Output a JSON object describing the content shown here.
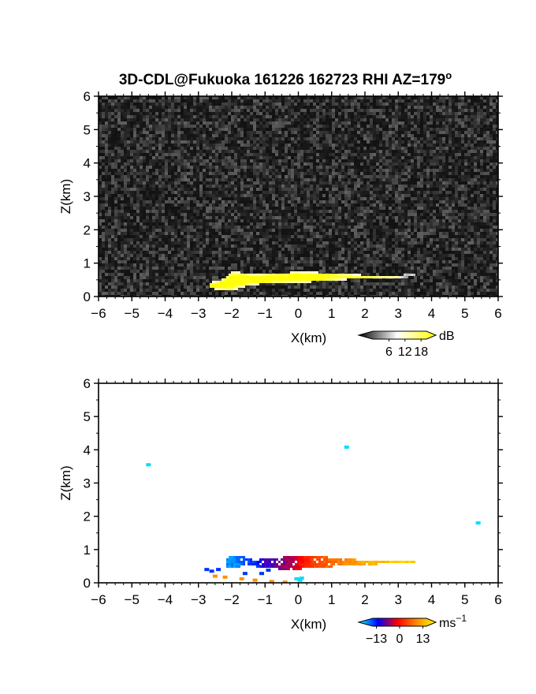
{
  "chart_data": [
    {
      "type": "heatmap",
      "title": "3D-CDL@Fukuoka 161226 162723 RHI AZ=179",
      "title_superscript": "o",
      "xlabel": "X(km)",
      "ylabel": "Z(km)",
      "xlim": [
        -6,
        6
      ],
      "ylim": [
        0,
        6
      ],
      "xticks": [
        "-6",
        "-5",
        "-4",
        "-3",
        "-2",
        "-1",
        "0",
        "1",
        "2",
        "3",
        "4",
        "5",
        "6"
      ],
      "yticks": [
        "0",
        "1",
        "2",
        "3",
        "4",
        "5",
        "6"
      ],
      "background": "noise",
      "colorbar": {
        "unit": "dB",
        "ticks": [
          "6",
          "12",
          "18"
        ],
        "min": 0,
        "max": 20,
        "colors": [
          "#000000",
          "#ffffff",
          "#ffff00"
        ]
      },
      "echo_band": [
        {
          "x": -2.7,
          "z_bottom": 0.28,
          "z_top": 0.45,
          "value": 20
        },
        {
          "x": -2.3,
          "z_bottom": 0.22,
          "z_top": 0.55,
          "value": 20
        },
        {
          "x": -2.0,
          "z_bottom": 0.2,
          "z_top": 0.8,
          "value": 20
        },
        {
          "x": -1.5,
          "z_bottom": 0.38,
          "z_top": 0.7,
          "value": 20
        },
        {
          "x": -1.0,
          "z_bottom": 0.42,
          "z_top": 0.72,
          "value": 20
        },
        {
          "x": -0.5,
          "z_bottom": 0.45,
          "z_top": 0.74,
          "value": 20
        },
        {
          "x": 0.0,
          "z_bottom": 0.45,
          "z_top": 0.78,
          "value": 20
        },
        {
          "x": 0.5,
          "z_bottom": 0.48,
          "z_top": 0.76,
          "value": 20
        },
        {
          "x": 1.0,
          "z_bottom": 0.52,
          "z_top": 0.72,
          "value": 19
        },
        {
          "x": 1.5,
          "z_bottom": 0.55,
          "z_top": 0.7,
          "value": 18
        },
        {
          "x": 2.0,
          "z_bottom": 0.57,
          "z_top": 0.68,
          "value": 17
        },
        {
          "x": 2.5,
          "z_bottom": 0.58,
          "z_top": 0.67,
          "value": 15
        },
        {
          "x": 3.0,
          "z_bottom": 0.6,
          "z_top": 0.68,
          "value": 12
        },
        {
          "x": 3.5,
          "z_bottom": 0.63,
          "z_top": 0.7,
          "value": 8
        }
      ]
    },
    {
      "type": "heatmap",
      "xlabel": "X(km)",
      "ylabel": "Z(km)",
      "xlim": [
        -6,
        6
      ],
      "ylim": [
        0,
        6
      ],
      "xticks": [
        "-6",
        "-5",
        "-4",
        "-3",
        "-2",
        "-1",
        "0",
        "1",
        "2",
        "3",
        "4",
        "5",
        "6"
      ],
      "yticks": [
        "0",
        "1",
        "2",
        "3",
        "4",
        "5",
        "6"
      ],
      "colorbar": {
        "unit": "ms",
        "unit_superscript": "−1",
        "ticks": [
          "−13",
          "0",
          "13"
        ],
        "min": -15,
        "max": 15,
        "colors": [
          "#00ffff",
          "#0000ff",
          "#ff0000",
          "#ff8800",
          "#ffff00"
        ]
      },
      "velocity_band": [
        {
          "x": -2.2,
          "z_bottom": 0.5,
          "z_top": 0.82,
          "value": -12
        },
        {
          "x": -1.8,
          "z_bottom": 0.52,
          "z_top": 0.85,
          "value": -11
        },
        {
          "x": -1.4,
          "z_bottom": 0.55,
          "z_top": 0.72,
          "value": -9
        },
        {
          "x": -1.0,
          "z_bottom": 0.48,
          "z_top": 0.78,
          "value": -6
        },
        {
          "x": -0.6,
          "z_bottom": 0.45,
          "z_top": 0.8,
          "value": -4
        },
        {
          "x": -0.2,
          "z_bottom": 0.45,
          "z_top": 0.82,
          "value": -2
        },
        {
          "x": 0.1,
          "z_bottom": 0.45,
          "z_top": 0.85,
          "value": 1
        },
        {
          "x": 0.5,
          "z_bottom": 0.5,
          "z_top": 0.82,
          "value": 4
        },
        {
          "x": 1.0,
          "z_bottom": 0.52,
          "z_top": 0.8,
          "value": 6
        },
        {
          "x": 1.5,
          "z_bottom": 0.55,
          "z_top": 0.76,
          "value": 8
        },
        {
          "x": 2.0,
          "z_bottom": 0.58,
          "z_top": 0.72,
          "value": 10
        },
        {
          "x": 2.5,
          "z_bottom": 0.6,
          "z_top": 0.72,
          "value": 11
        },
        {
          "x": 3.0,
          "z_bottom": 0.63,
          "z_top": 0.72,
          "value": 12
        },
        {
          "x": 3.5,
          "z_bottom": 0.65,
          "z_top": 0.7,
          "value": 12
        }
      ],
      "points": [
        {
          "x": -2.75,
          "z": 0.4,
          "value": -9
        },
        {
          "x": -2.6,
          "z": 0.35,
          "value": -9
        },
        {
          "x": -2.4,
          "z": 0.4,
          "value": -9
        },
        {
          "x": -2.5,
          "z": 0.2,
          "value": 8
        },
        {
          "x": -2.2,
          "z": 0.17,
          "value": 8
        },
        {
          "x": -1.7,
          "z": 0.12,
          "value": 8
        },
        {
          "x": -1.3,
          "z": 0.08,
          "value": 8
        },
        {
          "x": -0.8,
          "z": 0.04,
          "value": 8
        },
        {
          "x": -0.4,
          "z": 0.02,
          "value": 8
        },
        {
          "x": -1.6,
          "z": 0.28,
          "value": -9
        },
        {
          "x": -1.1,
          "z": 0.28,
          "value": -9
        },
        {
          "x": -0.9,
          "z": 0.38,
          "value": -9
        },
        {
          "x": -1.2,
          "z": 0.5,
          "value": -9
        },
        {
          "x": 0.05,
          "z": 0.08,
          "value": -14
        },
        {
          "x": -0.05,
          "z": 0.12,
          "value": -14
        },
        {
          "x": 0.1,
          "z": 0.14,
          "value": -14
        },
        {
          "x": -4.5,
          "z": 3.55,
          "value": -14
        },
        {
          "x": 1.45,
          "z": 4.08,
          "value": -14
        },
        {
          "x": 5.4,
          "z": 1.8,
          "value": -14
        }
      ]
    }
  ]
}
